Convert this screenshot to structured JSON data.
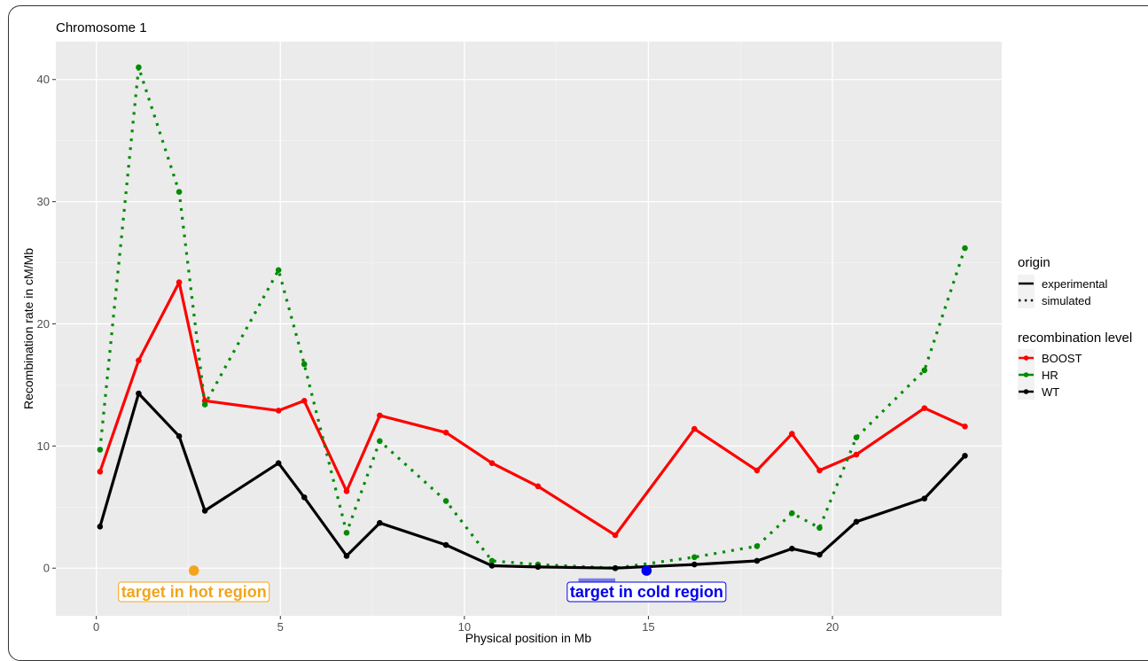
{
  "chart_data": {
    "type": "line",
    "title": "Chromosome 1",
    "xlabel": "Physical position in Mb",
    "ylabel": "Recombination rate in cM/Mb",
    "xlim": [
      -1.1,
      24.6
    ],
    "ylim": [
      -3.9,
      43.1
    ],
    "x_ticks": [
      0,
      5,
      10,
      15,
      20
    ],
    "y_ticks": [
      0,
      10,
      20,
      30,
      40
    ],
    "grid": true,
    "legend_position": "right",
    "legends": {
      "origin": {
        "title": "origin",
        "entries": [
          {
            "label": "experimental",
            "linestyle": "solid"
          },
          {
            "label": "simulated",
            "linestyle": "dotted"
          }
        ]
      },
      "recombination_level": {
        "title": "recombination level",
        "entries": [
          {
            "label": "BOOST",
            "color": "#ff0000"
          },
          {
            "label": "HR",
            "color": "#008b00"
          },
          {
            "label": "WT",
            "color": "#000000"
          }
        ]
      }
    },
    "series": [
      {
        "name": "BOOST",
        "origin": "experimental",
        "color": "#ff0000",
        "linestyle": "solid",
        "points": [
          [
            0.1,
            7.9
          ],
          [
            1.15,
            17.0
          ],
          [
            2.25,
            23.4
          ],
          [
            2.95,
            13.7
          ],
          [
            4.95,
            12.9
          ],
          [
            5.65,
            13.7
          ],
          [
            6.8,
            6.3
          ],
          [
            7.7,
            12.5
          ],
          [
            9.5,
            11.1
          ],
          [
            10.75,
            8.6
          ],
          [
            12.0,
            6.7
          ],
          [
            14.1,
            2.7
          ],
          [
            16.25,
            11.4
          ],
          [
            17.95,
            8.0
          ],
          [
            18.9,
            11.0
          ],
          [
            19.65,
            8.0
          ],
          [
            20.65,
            9.3
          ],
          [
            22.5,
            13.1
          ],
          [
            23.6,
            11.6
          ]
        ]
      },
      {
        "name": "HR",
        "origin": "simulated",
        "color": "#008b00",
        "linestyle": "dotted",
        "points": [
          [
            0.1,
            9.7
          ],
          [
            1.15,
            41.0
          ],
          [
            2.25,
            30.8
          ],
          [
            2.95,
            13.4
          ],
          [
            4.95,
            24.4
          ],
          [
            5.65,
            16.7
          ],
          [
            6.8,
            2.9
          ],
          [
            7.7,
            10.4
          ],
          [
            9.5,
            5.5
          ],
          [
            10.75,
            0.6
          ],
          [
            12.0,
            0.3
          ],
          [
            14.1,
            0.0
          ],
          [
            16.25,
            0.9
          ],
          [
            17.95,
            1.8
          ],
          [
            18.9,
            4.5
          ],
          [
            19.65,
            3.3
          ],
          [
            20.65,
            10.7
          ],
          [
            22.5,
            16.2
          ],
          [
            23.6,
            26.2
          ]
        ]
      },
      {
        "name": "WT",
        "origin": "experimental",
        "color": "#000000",
        "linestyle": "solid",
        "points": [
          [
            0.1,
            3.4
          ],
          [
            1.15,
            14.3
          ],
          [
            2.25,
            10.8
          ],
          [
            2.95,
            4.7
          ],
          [
            4.95,
            8.6
          ],
          [
            5.65,
            5.8
          ],
          [
            6.8,
            1.0
          ],
          [
            7.7,
            3.7
          ],
          [
            9.5,
            1.9
          ],
          [
            10.75,
            0.2
          ],
          [
            12.0,
            0.1
          ],
          [
            14.1,
            0.0
          ],
          [
            16.25,
            0.3
          ],
          [
            17.95,
            0.6
          ],
          [
            18.9,
            1.6
          ],
          [
            19.65,
            1.1
          ],
          [
            20.65,
            3.8
          ],
          [
            22.5,
            5.7
          ],
          [
            23.6,
            9.2
          ]
        ]
      }
    ],
    "annotations": [
      {
        "text": "target in hot region",
        "x": 2.65,
        "y": -0.2,
        "color": "#f2a51c"
      },
      {
        "text": "target in cold region",
        "x": 14.95,
        "y": -0.2,
        "color": "#0000ee",
        "segment": {
          "x_start": 13.1,
          "x_end": 14.1,
          "y": -1.0,
          "color": "#7b7be8"
        }
      }
    ]
  }
}
